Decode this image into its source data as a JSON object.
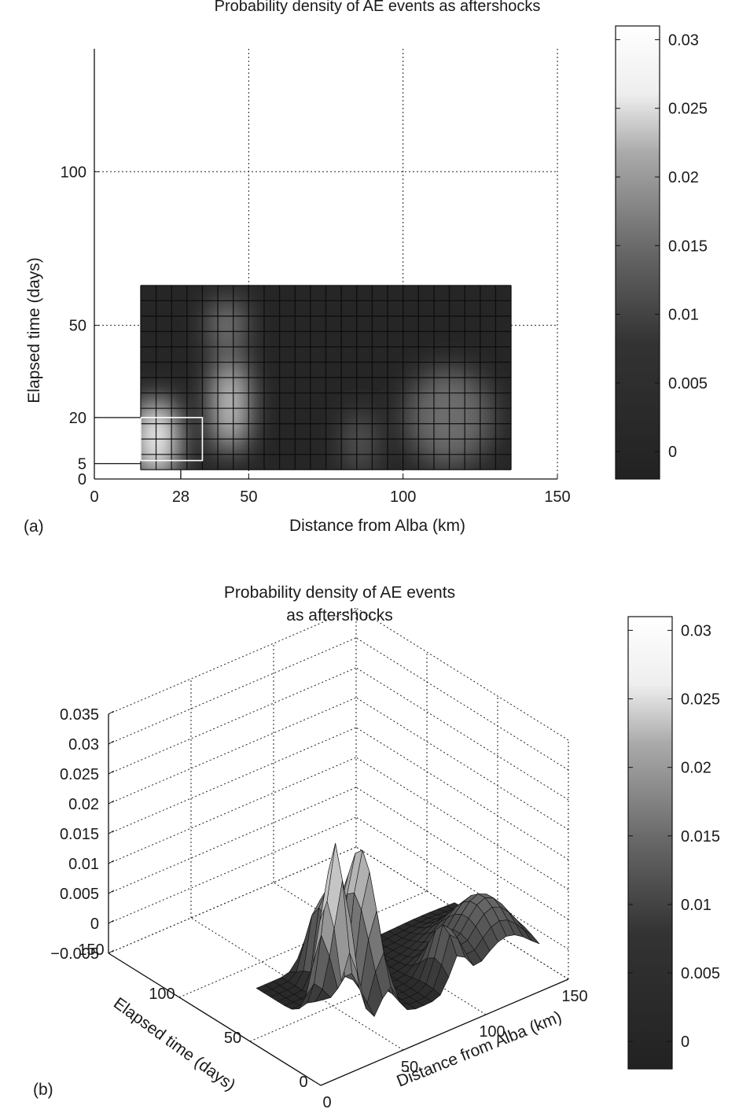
{
  "chart_data": [
    {
      "panel_label": "(a)",
      "type": "heatmap",
      "title": "Probability density of AE events as aftershocks",
      "xlabel": "Distance from Alba (km)",
      "ylabel": "Elapsed time (days)",
      "xlim": [
        0,
        150
      ],
      "ylim": [
        0,
        140
      ],
      "x_ticks": [
        0,
        28,
        50,
        100,
        150
      ],
      "y_ticks": [
        0,
        5,
        20,
        50,
        100
      ],
      "grid": true,
      "data_extent": {
        "x": [
          15,
          135
        ],
        "y": [
          3,
          63
        ]
      },
      "grid_cell": {
        "x": 5,
        "y": 5
      },
      "highlight_box": {
        "x": [
          15,
          35
        ],
        "y": [
          6,
          20
        ]
      },
      "peaks": [
        {
          "x": 20,
          "y": 13,
          "value": 0.031
        },
        {
          "x": 44,
          "y": 24,
          "value": 0.026
        },
        {
          "x": 43,
          "y": 50,
          "value": 0.014
        },
        {
          "x": 86,
          "y": 12,
          "value": 0.009
        },
        {
          "x": 115,
          "y": 20,
          "value": 0.01
        }
      ],
      "colorbar": {
        "range": [
          -0.002,
          0.031
        ],
        "ticks": [
          0,
          0.005,
          0.01,
          0.015,
          0.02,
          0.025,
          0.03
        ],
        "tick_labels": [
          "0",
          "0.005",
          "0.01",
          "0.015",
          "0.02",
          "0.025",
          "0.03"
        ]
      }
    },
    {
      "panel_label": "(b)",
      "type": "surface",
      "title_lines": [
        "Probability density of AE events",
        "as aftershocks"
      ],
      "xlabel": "Distance from Alba (km)",
      "ylabel": "Elapsed time (days)",
      "x_ticks": [
        0,
        50,
        100,
        150
      ],
      "y_ticks": [
        0,
        50,
        100,
        150
      ],
      "z_ticks": [
        -0.005,
        0,
        0.005,
        0.01,
        0.015,
        0.02,
        0.025,
        0.03,
        0.035
      ],
      "z_tick_labels": [
        "−0.005",
        "0",
        "0.005",
        "0.01",
        "0.015",
        "0.02",
        "0.025",
        "0.03",
        "0.035"
      ],
      "xlim": [
        0,
        150
      ],
      "ylim": [
        0,
        150
      ],
      "zlim": [
        -0.005,
        0.035
      ],
      "grid": true,
      "colorbar": {
        "range": [
          -0.002,
          0.031
        ],
        "ticks": [
          0,
          0.005,
          0.01,
          0.015,
          0.02,
          0.025,
          0.03
        ],
        "tick_labels": [
          "0",
          "0.005",
          "0.01",
          "0.015",
          "0.02",
          "0.025",
          "0.03"
        ]
      }
    }
  ]
}
